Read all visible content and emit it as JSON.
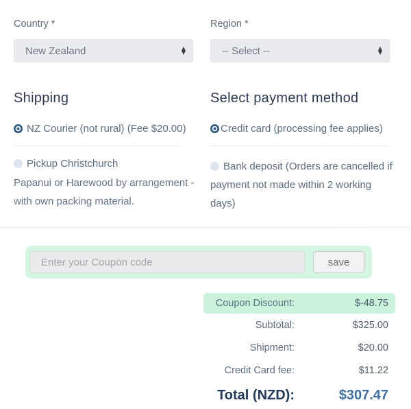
{
  "form": {
    "country": {
      "label": "Country *",
      "value": "New Zealand"
    },
    "region": {
      "label": "Region *",
      "value": "-- Select --"
    }
  },
  "shipping": {
    "heading": "Shipping",
    "options": [
      {
        "label": "NZ Courier (not rural) (Fee $20.00)",
        "selected": true
      },
      {
        "label": "Pickup Christchurch",
        "selected": false
      }
    ],
    "note_lines": [
      "Papanui or Harewood by arrangement -",
      "with own packing material."
    ]
  },
  "payment": {
    "heading": "Select payment method",
    "options": [
      {
        "label": "Credit card (processing fee applies)",
        "selected": true
      },
      {
        "lines": [
          "Bank deposit (Orders are cancelled if",
          "payment not made within 2 working",
          "days)"
        ],
        "selected": false
      }
    ]
  },
  "coupon": {
    "placeholder": "Enter your Coupon code",
    "save_label": "save"
  },
  "totals": {
    "rows": [
      {
        "label": "Coupon Discount:",
        "value": "$-48.75",
        "highlight": true
      },
      {
        "label": "Subtotal:",
        "value": "$325.00"
      },
      {
        "label": "Shipment:",
        "value": "$20.00"
      },
      {
        "label": "Credit Card fee:",
        "value": "$11.22"
      }
    ],
    "total": {
      "label": "Total (NZD):",
      "value": "$307.47"
    }
  },
  "colors": {
    "radio_selected": "#2e5c87",
    "heading_navy": "#2b3a52",
    "mint_box": "#d4f6e2",
    "mint_pill": "#c9f3db",
    "total_label": "#21395a",
    "total_value": "#3e70a2"
  }
}
